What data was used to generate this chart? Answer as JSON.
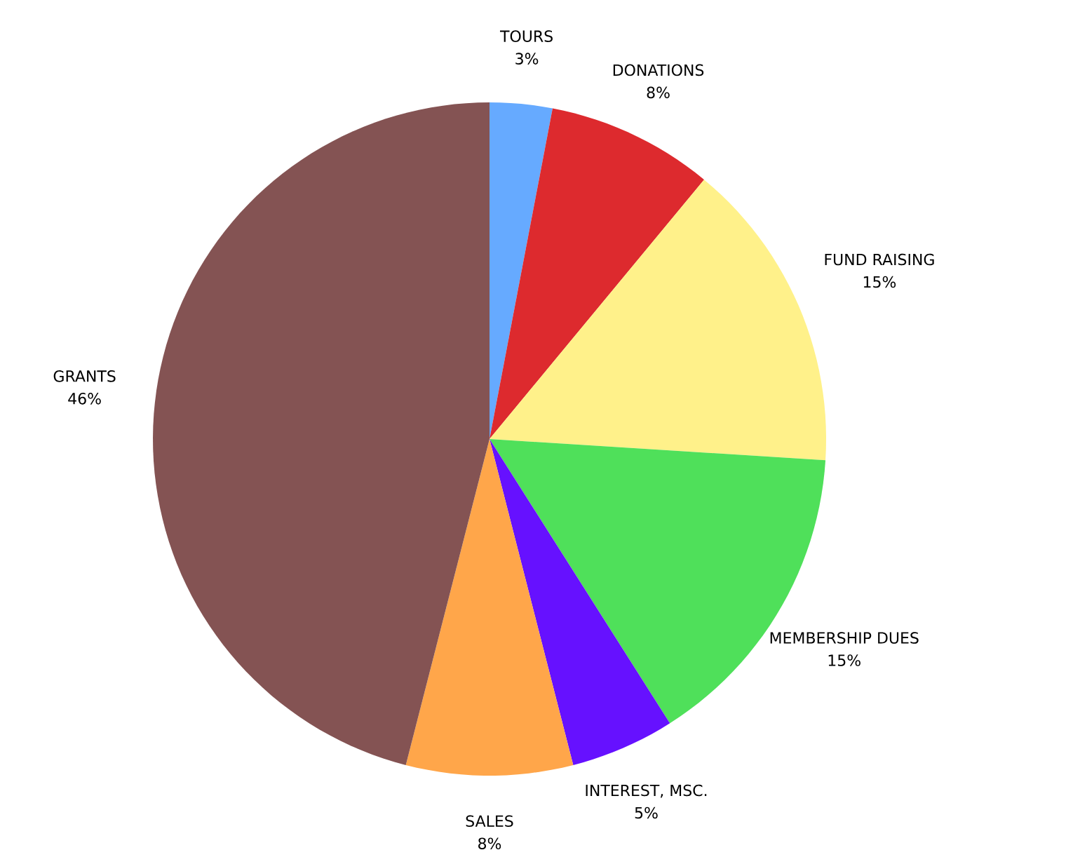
{
  "chart_data": {
    "type": "pie",
    "categories": [
      "TOURS",
      "DONATIONS",
      "FUND RAISING",
      "MEMBERSHIP DUES",
      "INTEREST, MSC.",
      "SALES",
      "GRANTS"
    ],
    "values": [
      3,
      8,
      15,
      15,
      5,
      8,
      46
    ],
    "value_labels": [
      "3%",
      "8%",
      "15%",
      "15%",
      "5%",
      "8%",
      "46%"
    ],
    "colors": [
      "#66aaff",
      "#dd2a2e",
      "#fff18a",
      "#4fe05a",
      "#6611ff",
      "#ffa64a",
      "#845353"
    ]
  }
}
